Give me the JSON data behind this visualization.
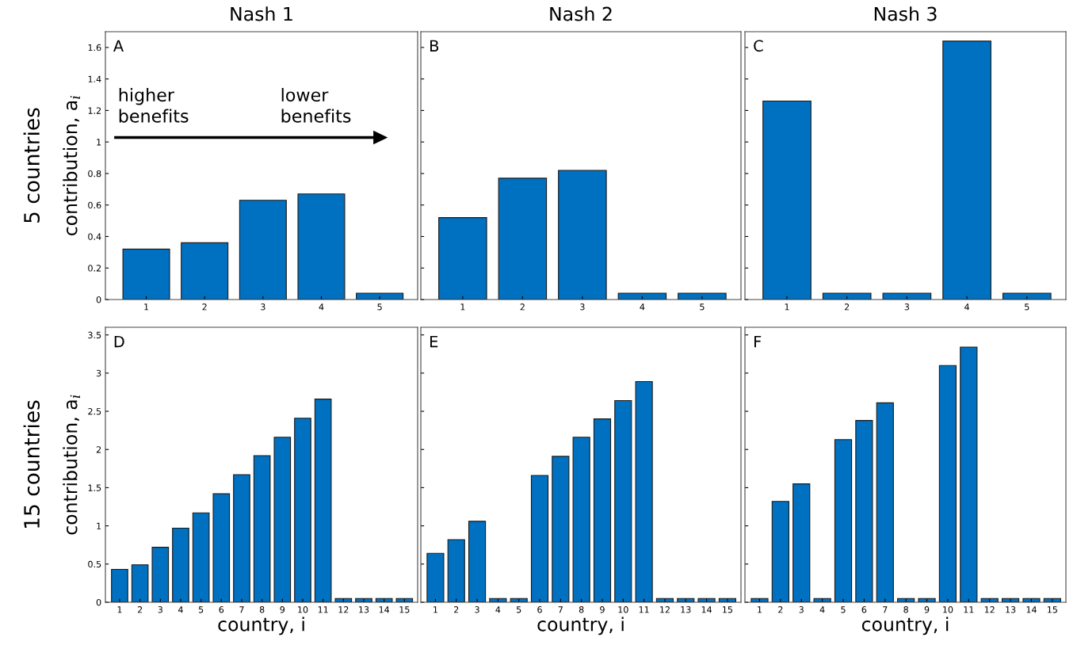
{
  "chart_data": [
    {
      "type": "bar",
      "title": "Nash 1",
      "ylabel": "contribution, a$_{i}$",
      "categories": [
        "1",
        "2",
        "3",
        "4",
        "5"
      ],
      "values": [
        0.32,
        0.36,
        0.63,
        0.67,
        0.04
      ],
      "color": "#0070c0",
      "ylim": [
        0,
        1.7
      ],
      "yticks": [
        0,
        0.2,
        0.4,
        0.6,
        0.8,
        1,
        1.2,
        1.4,
        1.6
      ],
      "grid": false,
      "annotations": [
        "A",
        "5 countries",
        "higher\nbenefits",
        "lower\nbenefits"
      ]
    },
    {
      "type": "bar",
      "title": "Nash 2",
      "categories": [
        "1",
        "2",
        "3",
        "4",
        "5"
      ],
      "values": [
        0.52,
        0.77,
        0.82,
        0.04,
        0.04
      ],
      "color": "#0070c0",
      "ylim": [
        0,
        1.7
      ],
      "yticks": [
        0,
        0.2,
        0.4,
        0.6,
        0.8,
        1,
        1.2,
        1.4,
        1.6
      ],
      "grid": false,
      "tick_labels": "x",
      "annotations": [
        "B"
      ]
    },
    {
      "type": "bar",
      "title": "Nash 3",
      "categories": [
        "1",
        "2",
        "3",
        "4",
        "5"
      ],
      "values": [
        1.26,
        0.04,
        0.04,
        1.64,
        0.04
      ],
      "color": "#0070c0",
      "ylim": [
        0,
        1.7
      ],
      "yticks": [
        0,
        0.2,
        0.4,
        0.6,
        0.8,
        1,
        1.2,
        1.4,
        1.6
      ],
      "grid": false,
      "tick_labels": "x",
      "annotations": [
        "C"
      ]
    },
    {
      "type": "bar",
      "xlabel": "country, i",
      "ylabel": "contribution, a$_{i}$",
      "categories": [
        "1",
        "2",
        "3",
        "4",
        "5",
        "6",
        "7",
        "8",
        "9",
        "10",
        "11",
        "12",
        "13",
        "14",
        "15"
      ],
      "values": [
        0.43,
        0.49,
        0.72,
        0.97,
        1.17,
        1.42,
        1.67,
        1.92,
        2.16,
        2.41,
        2.66,
        0.05,
        0.05,
        0.05,
        0.05
      ],
      "color": "#0070c0",
      "ylim": [
        0,
        3.6
      ],
      "yticks": [
        0,
        0.5,
        1,
        1.5,
        2,
        2.5,
        3,
        3.5
      ],
      "grid": false,
      "annotations": [
        "D",
        "15 countries"
      ]
    },
    {
      "type": "bar",
      "xlabel": "country, i",
      "categories": [
        "1",
        "2",
        "3",
        "4",
        "5",
        "6",
        "7",
        "8",
        "9",
        "10",
        "11",
        "12",
        "13",
        "14",
        "15"
      ],
      "values": [
        0.64,
        0.82,
        1.06,
        0.05,
        0.05,
        1.66,
        1.91,
        2.16,
        2.4,
        2.64,
        2.89,
        0.05,
        0.05,
        0.05,
        0.05
      ],
      "color": "#0070c0",
      "ylim": [
        0,
        3.6
      ],
      "yticks": [
        0,
        0.5,
        1,
        1.5,
        2,
        2.5,
        3,
        3.5
      ],
      "grid": false,
      "tick_labels": "x",
      "annotations": [
        "E"
      ]
    },
    {
      "type": "bar",
      "xlabel": "country, i",
      "categories": [
        "1",
        "2",
        "3",
        "4",
        "5",
        "6",
        "7",
        "8",
        "9",
        "10",
        "11",
        "12",
        "13",
        "14",
        "15"
      ],
      "values": [
        0.05,
        1.32,
        1.55,
        0.05,
        2.13,
        2.38,
        2.61,
        0.05,
        0.05,
        3.1,
        3.34,
        0.05,
        0.05,
        0.05,
        0.05
      ],
      "color": "#0070c0",
      "ylim": [
        0,
        3.6
      ],
      "yticks": [
        0,
        0.5,
        1,
        1.5,
        2,
        2.5,
        3,
        3.5
      ],
      "grid": false,
      "tick_labels": "x",
      "annotations": [
        "F"
      ]
    }
  ]
}
